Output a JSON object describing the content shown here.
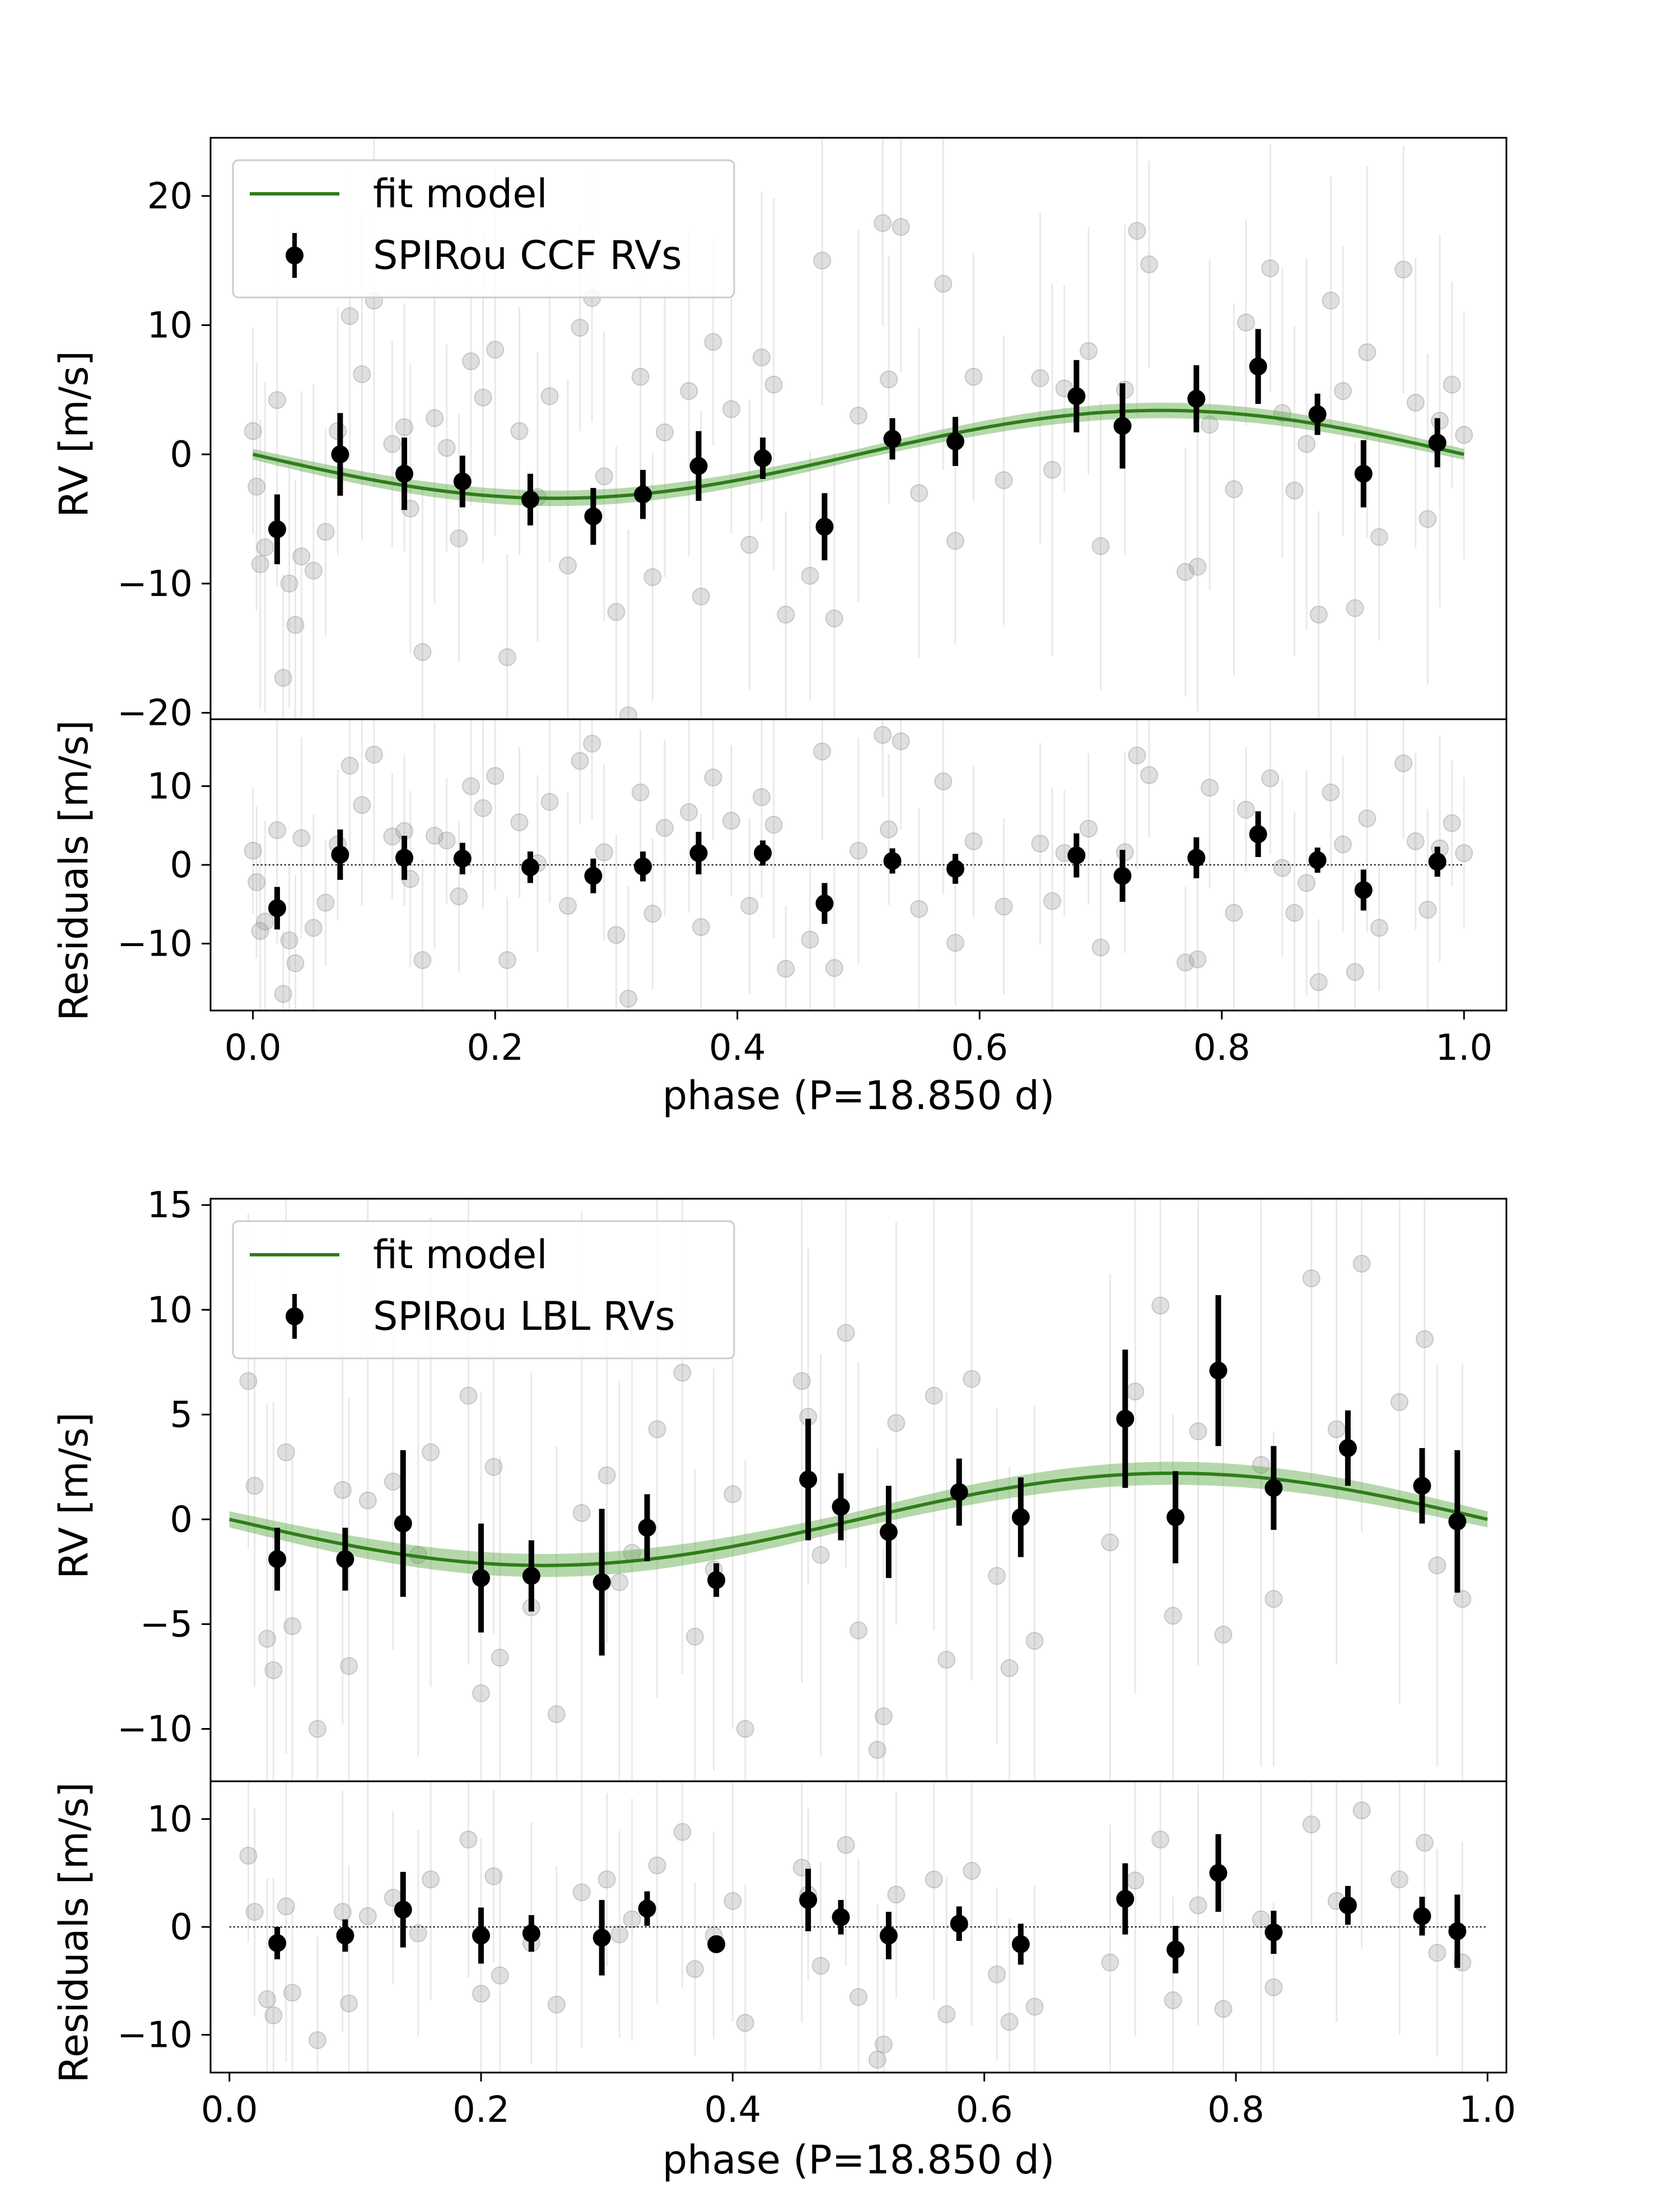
{
  "chart_data": [
    {
      "id": "ccf",
      "type": "scatter",
      "title": "",
      "legend_placement": "top-left",
      "legend": {
        "model_label": "fit model",
        "data_label": "SPIRou CCF RVs"
      },
      "colors": {
        "model": "#2e7d1a",
        "band": "#5aa845",
        "binned": "#000000",
        "raw": "#9a9a9a"
      },
      "model": {
        "type": "sinusoid",
        "amplitude": 3.4,
        "period_phase": 1.0,
        "shape": "-sin(2*pi*phase)",
        "band_halfwidth": 0.6
      },
      "rv_panel": {
        "ylabel": "RV [m/s]",
        "ylim": [
          -20.5,
          24.5
        ],
        "yticks": [
          20,
          10,
          0,
          -10,
          -20
        ],
        "ytick_labels": [
          "20",
          "10",
          "0",
          "−10",
          "−20"
        ]
      },
      "res_panel": {
        "ylabel": "Residuals [m/s]",
        "ylim": [
          -18.5,
          18.5
        ],
        "yticks": [
          10,
          0,
          -10
        ],
        "ytick_labels": [
          "10",
          "0",
          "−10"
        ]
      },
      "xaxis": {
        "xlabel": "phase (P=18.850 d)",
        "xlim": [
          -0.035,
          1.035
        ],
        "xticks": [
          0.0,
          0.2,
          0.4,
          0.6,
          0.8,
          1.0
        ],
        "xtick_labels": [
          "0.0",
          "0.2",
          "0.4",
          "0.6",
          "0.8",
          "1.0"
        ]
      },
      "binned": {
        "phase": [
          0.02,
          0.072,
          0.125,
          0.173,
          0.229,
          0.281,
          0.322,
          0.368,
          0.421,
          0.472,
          0.528,
          0.58,
          0.68,
          0.718,
          0.779,
          0.83,
          0.879,
          0.917,
          0.978
        ],
        "rv": [
          -5.8,
          0.0,
          -1.5,
          -2.1,
          -3.5,
          -4.8,
          -3.1,
          -0.9,
          -0.3,
          -5.6,
          1.2,
          1.0,
          4.5,
          2.2,
          4.3,
          6.8,
          3.1,
          -1.5,
          0.9
        ],
        "rv_err": [
          2.7,
          3.2,
          2.8,
          2.0,
          2.0,
          2.2,
          1.9,
          2.7,
          1.6,
          2.6,
          1.6,
          1.9,
          2.8,
          3.3,
          2.6,
          2.9,
          1.6,
          2.6,
          1.9
        ],
        "res": [
          -5.5,
          1.3,
          0.9,
          0.8,
          -0.3,
          -1.4,
          -0.2,
          1.5,
          1.5,
          -4.9,
          0.5,
          -0.5,
          1.2,
          -1.4,
          0.9,
          3.9,
          0.6,
          -3.2,
          0.4
        ],
        "res_err": [
          2.7,
          3.2,
          2.8,
          2.0,
          2.0,
          2.2,
          1.9,
          2.7,
          1.6,
          2.6,
          1.6,
          1.9,
          2.8,
          3.3,
          2.6,
          2.9,
          1.6,
          2.6,
          1.9
        ]
      },
      "raw": {
        "phase": [
          0.0,
          0.003,
          0.006,
          0.01,
          0.02,
          0.025,
          0.03,
          0.035,
          0.04,
          0.05,
          0.06,
          0.07,
          0.08,
          0.09,
          0.1,
          0.115,
          0.125,
          0.13,
          0.14,
          0.15,
          0.16,
          0.17,
          0.18,
          0.19,
          0.2,
          0.21,
          0.22,
          0.235,
          0.245,
          0.26,
          0.27,
          0.28,
          0.29,
          0.3,
          0.31,
          0.32,
          0.33,
          0.34,
          0.36,
          0.37,
          0.38,
          0.395,
          0.41,
          0.42,
          0.43,
          0.44,
          0.46,
          0.47,
          0.48,
          0.5,
          0.52,
          0.525,
          0.535,
          0.55,
          0.57,
          0.58,
          0.595,
          0.62,
          0.65,
          0.66,
          0.67,
          0.69,
          0.7,
          0.72,
          0.73,
          0.74,
          0.77,
          0.78,
          0.79,
          0.81,
          0.82,
          0.84,
          0.85,
          0.86,
          0.87,
          0.88,
          0.89,
          0.9,
          0.91,
          0.92,
          0.93,
          0.95,
          0.96,
          0.97,
          0.98,
          0.99,
          1.0
        ],
        "rv": [
          1.8,
          -2.5,
          -8.5,
          -7.2,
          4.2,
          -17.3,
          -10.0,
          -13.2,
          -7.9,
          -9.0,
          -6.0,
          1.8,
          10.7,
          6.2,
          11.9,
          0.8,
          2.1,
          -4.2,
          -15.3,
          2.8,
          0.5,
          -6.5,
          7.2,
          4.4,
          8.1,
          -15.7,
          1.8,
          -3.3,
          4.5,
          -8.6,
          9.8,
          12.1,
          -1.7,
          -12.2,
          -20.2,
          6.0,
          -9.5,
          1.7,
          4.9,
          -11.0,
          8.7,
          3.5,
          -7.0,
          7.5,
          5.4,
          -12.4,
          -9.4,
          15.0,
          -12.7,
          3.0,
          17.9,
          5.8,
          17.6,
          -3.0,
          13.2,
          -6.7,
          6.0,
          -2.0,
          5.9,
          -1.2,
          5.1,
          8.0,
          -7.1,
          5.0,
          17.3,
          14.7,
          -9.1,
          -8.7,
          2.3,
          -2.7,
          10.2,
          14.4,
          3.2,
          -2.8,
          0.8,
          -12.4,
          11.9,
          4.9,
          -11.9,
          7.9,
          -6.4,
          14.3,
          4.0,
          -5.0,
          2.6,
          5.4,
          1.5
        ],
        "res": [
          1.8,
          -2.2,
          -8.4,
          -7.2,
          4.4,
          -16.4,
          -9.6,
          -12.5,
          3.4,
          -8.0,
          -4.8,
          2.6,
          12.6,
          7.6,
          14.0,
          3.6,
          4.3,
          -1.8,
          -12.1,
          3.7,
          3.1,
          -4.0,
          10.0,
          7.2,
          11.3,
          -12.1,
          5.4,
          0.2,
          8.0,
          -5.2,
          13.2,
          15.4,
          1.6,
          -8.9,
          -17.0,
          9.2,
          -6.2,
          4.7,
          6.7,
          -7.9,
          11.1,
          5.6,
          -5.2,
          8.6,
          5.1,
          -13.2,
          -9.5,
          14.4,
          -13.1,
          1.8,
          16.5,
          4.5,
          15.7,
          -5.6,
          10.6,
          -9.9,
          3.0,
          -5.3,
          2.7,
          -4.6,
          1.5,
          4.6,
          -10.5,
          1.6,
          13.9,
          11.4,
          -12.4,
          -12.0,
          9.8,
          -6.1,
          7.0,
          11.0,
          -0.4,
          -6.1,
          -2.3,
          -14.9,
          9.2,
          2.6,
          -13.6,
          5.9,
          -8.0,
          12.9,
          3.0,
          -5.7,
          2.1,
          5.3,
          1.5
        ]
      }
    },
    {
      "id": "lbl",
      "type": "scatter",
      "title": "",
      "legend_placement": "top-left",
      "legend": {
        "model_label": "fit model",
        "data_label": "SPIRou LBL RVs"
      },
      "colors": {
        "model": "#2e7d1a",
        "band": "#5aa845",
        "binned": "#000000",
        "raw": "#9a9a9a"
      },
      "model": {
        "type": "sinusoid",
        "amplitude": 2.2,
        "period_phase": 1.0,
        "shape": "-sin(2*pi*phase)",
        "band_halfwidth": 0.55
      },
      "rv_panel": {
        "ylabel": "RV [m/s]",
        "ylim": [
          -12.5,
          15.3
        ],
        "yticks": [
          15,
          10,
          5,
          0,
          -5,
          -10
        ],
        "ytick_labels": [
          "15",
          "10",
          "5",
          "0",
          "−5",
          "−10"
        ]
      },
      "res_panel": {
        "ylabel": "Residuals [m/s]",
        "ylim": [
          -13.5,
          13.5
        ],
        "yticks": [
          10,
          0,
          -10
        ],
        "ytick_labels": [
          "10",
          "0",
          "−10"
        ]
      },
      "xaxis": {
        "xlabel": "phase (P=18.850 d)",
        "xlim": [
          -0.015,
          1.015
        ],
        "xticks": [
          0.0,
          0.2,
          0.4,
          0.6,
          0.8,
          1.0
        ],
        "xtick_labels": [
          "0.0",
          "0.2",
          "0.4",
          "0.6",
          "0.8",
          "1.0"
        ]
      },
      "binned": {
        "phase": [
          0.038,
          0.092,
          0.138,
          0.2,
          0.24,
          0.296,
          0.332,
          0.387,
          0.46,
          0.486,
          0.524,
          0.58,
          0.629,
          0.712,
          0.752,
          0.786,
          0.83,
          0.889,
          0.948,
          0.976
        ],
        "rv": [
          -1.9,
          -1.9,
          -0.2,
          -2.8,
          -2.7,
          -3.0,
          -0.4,
          -2.9,
          1.9,
          0.6,
          -0.6,
          1.3,
          0.1,
          4.8,
          0.1,
          7.1,
          1.5,
          3.4,
          1.6,
          -0.1
        ],
        "rv_err": [
          1.5,
          1.5,
          3.5,
          2.6,
          1.7,
          3.5,
          1.6,
          0.8,
          2.9,
          1.6,
          2.2,
          1.6,
          1.9,
          3.3,
          2.2,
          3.6,
          2.0,
          1.8,
          1.8,
          3.4
        ],
        "res": [
          -1.5,
          -0.8,
          1.6,
          -0.8,
          -0.6,
          -1.0,
          1.7,
          -1.6,
          2.5,
          0.9,
          -0.8,
          0.3,
          -1.6,
          2.6,
          -2.1,
          5.0,
          -0.5,
          2.0,
          1.0,
          -0.4
        ],
        "res_err": [
          1.5,
          1.5,
          3.5,
          2.6,
          1.7,
          3.5,
          1.6,
          0.8,
          2.9,
          1.6,
          2.2,
          1.6,
          1.9,
          3.3,
          2.2,
          3.6,
          2.0,
          1.8,
          1.8,
          3.4
        ]
      },
      "raw": {
        "phase": [
          0.015,
          0.02,
          0.03,
          0.035,
          0.045,
          0.05,
          0.07,
          0.09,
          0.095,
          0.11,
          0.13,
          0.15,
          0.16,
          0.19,
          0.2,
          0.21,
          0.215,
          0.24,
          0.26,
          0.28,
          0.3,
          0.31,
          0.32,
          0.34,
          0.36,
          0.37,
          0.385,
          0.4,
          0.41,
          0.455,
          0.46,
          0.47,
          0.49,
          0.5,
          0.515,
          0.52,
          0.53,
          0.56,
          0.57,
          0.59,
          0.61,
          0.62,
          0.64,
          0.7,
          0.72,
          0.74,
          0.75,
          0.77,
          0.79,
          0.82,
          0.83,
          0.86,
          0.88,
          0.9,
          0.93,
          0.95,
          0.96,
          0.98
        ],
        "rv": [
          6.6,
          1.6,
          -5.7,
          -7.2,
          3.2,
          -5.1,
          -10.0,
          1.4,
          -7.0,
          0.9,
          1.8,
          -1.7,
          3.2,
          5.9,
          -8.3,
          2.5,
          -6.6,
          -4.2,
          -9.3,
          0.3,
          2.1,
          -3.0,
          -1.6,
          4.3,
          7.0,
          -5.6,
          -2.4,
          1.2,
          -10.0,
          6.6,
          4.9,
          -1.7,
          8.9,
          -5.3,
          -11.0,
          -9.4,
          4.6,
          5.9,
          -6.7,
          6.7,
          -2.7,
          -7.1,
          -5.8,
          -1.1,
          6.1,
          10.2,
          -4.6,
          4.2,
          -5.5,
          2.6,
          -3.8,
          11.5,
          4.3,
          12.2,
          5.6,
          8.6,
          -2.2,
          -3.8
        ],
        "res": [
          6.6,
          1.4,
          -6.7,
          -8.2,
          1.9,
          -6.1,
          -10.5,
          1.4,
          -7.1,
          1.0,
          2.7,
          -0.6,
          4.4,
          8.1,
          -6.2,
          4.7,
          -4.5,
          -1.5,
          -7.2,
          3.2,
          4.4,
          -0.7,
          0.7,
          5.7,
          8.8,
          -3.9,
          -0.8,
          2.4,
          -8.9,
          5.5,
          3.0,
          -3.6,
          7.6,
          -6.5,
          -12.3,
          -10.9,
          3.0,
          4.4,
          -8.1,
          5.2,
          -4.4,
          -8.8,
          -7.4,
          -3.3,
          4.3,
          8.1,
          -6.8,
          2.0,
          -7.6,
          0.7,
          -5.6,
          9.5,
          2.4,
          10.8,
          4.4,
          7.8,
          -2.4,
          -3.3
        ]
      }
    }
  ]
}
